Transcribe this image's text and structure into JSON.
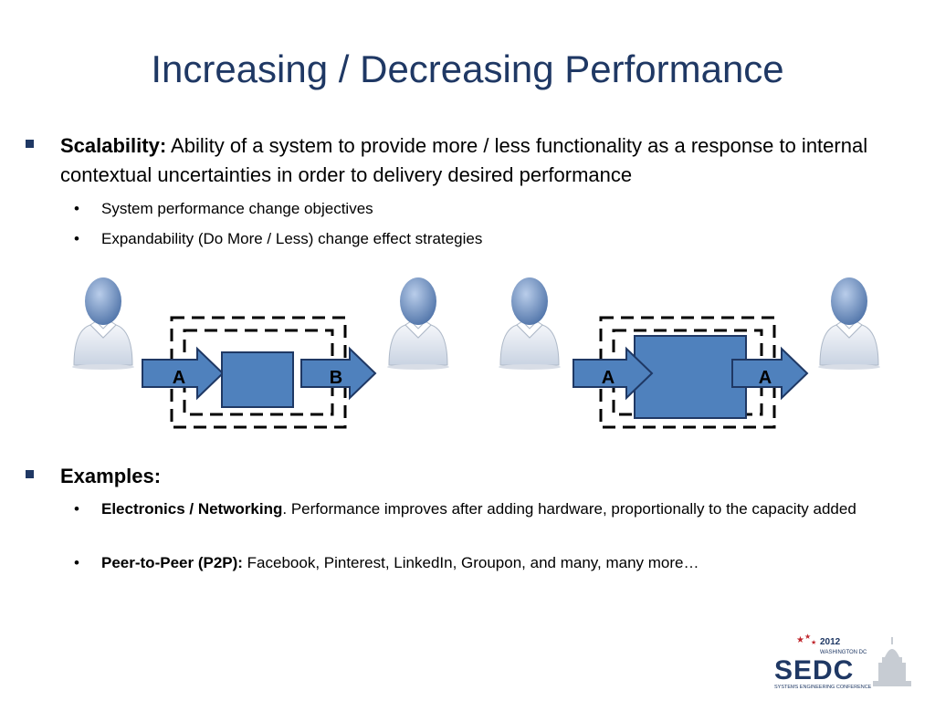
{
  "title": "Increasing / Decreasing Performance",
  "bullets": {
    "scalability": {
      "label": "Scalability:",
      "text": " Ability of a system to provide more / less functionality as a response to internal contextual uncertainties in order to delivery desired performance",
      "sub": [
        "System performance change objectives",
        "Expandability (Do More / Less) change effect strategies"
      ]
    },
    "examples": {
      "label": "Examples:",
      "sub": [
        {
          "label": "Electronics / Networking",
          "text": ". Performance improves after adding hardware, proportionally to the capacity added"
        },
        {
          "label": "Peer-to-Peer (P2P):",
          "text": " Facebook, Pinterest, LinkedIn, Groupon, and many, many more…"
        }
      ]
    }
  },
  "diagram": {
    "left": {
      "input_label": "A",
      "output_label": "B"
    },
    "right": {
      "input_label": "A",
      "output_label": "A"
    }
  },
  "logo": {
    "year": "2012",
    "city": "WASHINGTON DC",
    "acronym": "SEDC",
    "subtitle": "SYSTEMS ENGINEERING CONFERENCE"
  },
  "colors": {
    "title": "#1f3864",
    "box": "#4f81bd",
    "box_border": "#1f3864",
    "person": "#6f93c4"
  }
}
